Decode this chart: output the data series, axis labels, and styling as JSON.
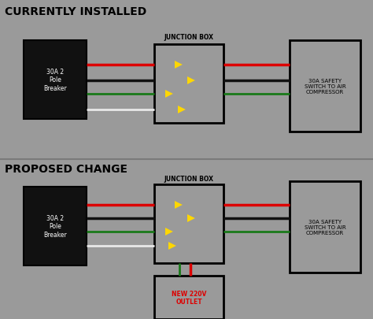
{
  "bg_color": "#9a9a9a",
  "box_bg": "#9a9a9a",
  "black_box_color": "#111111",
  "red": "#dd0000",
  "green": "#1a7a1a",
  "black_wire": "#111111",
  "white_wire": "#e8e8e8",
  "yellow": "#FFD700",
  "title1": "CURRENTLY INSTALLED",
  "title2": "PROPOSED CHANGE",
  "label_breaker": "30A 2\nPole\nBreaker",
  "label_safety": "30A SAFETY\nSWITCH TO AIR\nCOMPRESSOR",
  "label_junction": "JUNCTION BOX",
  "label_outlet": "NEW 220V\nOUTLET",
  "divider_color": "#7a7a7a",
  "outlet_text_color": "#dd0000"
}
